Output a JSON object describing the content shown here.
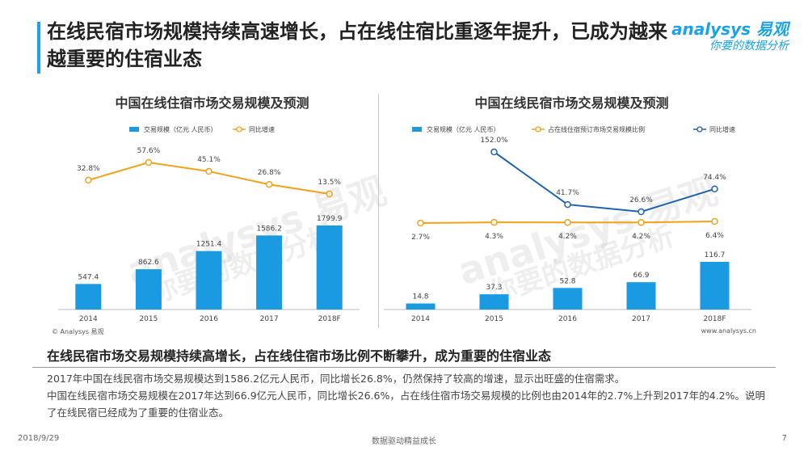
{
  "page": {
    "title": "在线民宿市场规模持续高速增长，占在线住宿比重逐年提升，已成为越来越重要的住宿业态",
    "logo_brand": "analysys 易观",
    "logo_slogan": "你要的数据分析",
    "watermark_brand": "analysys 易观",
    "watermark_slogan": "你要的数据分析",
    "source_left": "© Analysys 易观",
    "source_right": "www.analysys.cn",
    "subtitle": "在线民宿市场交易规模持续高增长，占在线住宿市场比例不断攀升，成为重要的住宿业态",
    "paragraphs": [
      "2017年中国在线民宿市场交易规模达到1586.2亿元人民币，同比增长26.8%，仍然保持了较高的增速，显示出旺盛的住宿需求。",
      "中国在线民宿市场交易规模在2017年达到66.9亿元人民币，同比增长26.6%，占在线住宿市场交易规模的比例也由2014年的2.7%上升到2017年的4.2%。说明了在线民宿已经成为了重要的住宿业态。"
    ],
    "footer_date": "2018/9/29",
    "footer_center": "数据驱动精益成长",
    "footer_page": "7"
  },
  "colors": {
    "bar": "#1a9ae0",
    "orange_line": "#f0a21b",
    "blue_line": "#1d63b0",
    "accent": "#1aa3e8"
  },
  "chart_data": [
    {
      "type": "bar",
      "title": "中国在线住宿市场交易规模及预测",
      "categories": [
        "2014",
        "2015",
        "2016",
        "2017",
        "2018F"
      ],
      "series": [
        {
          "name": "交易规模（亿元 人民币）",
          "kind": "bar",
          "values": [
            547.4,
            862.6,
            1251.4,
            1586.2,
            1799.9
          ],
          "labels": [
            "547.4",
            "862.6",
            "1251.4",
            "1586.2",
            "1799.9"
          ]
        },
        {
          "name": "同比增速",
          "kind": "line",
          "values": [
            32.8,
            57.6,
            45.1,
            26.8,
            13.5
          ],
          "labels": [
            "32.8%",
            "57.6%",
            "45.1%",
            "26.8%",
            "13.5%"
          ]
        }
      ],
      "legend": "top",
      "grid": false
    },
    {
      "type": "bar",
      "title": "中国在线民宿市场交易规模及预测",
      "categories": [
        "2014",
        "2015",
        "2016",
        "2017",
        "2018F"
      ],
      "series": [
        {
          "name": "交易规模（亿元 人民币）",
          "kind": "bar",
          "values": [
            14.8,
            37.3,
            52.8,
            66.9,
            116.7
          ],
          "labels": [
            "14.8",
            "37.3",
            "52.8",
            "66.9",
            "116.7"
          ]
        },
        {
          "name": "占在线住宿预订市场交易规模比例",
          "kind": "line",
          "values": [
            2.7,
            4.3,
            4.2,
            4.2,
            6.4
          ],
          "labels": [
            "2.7%",
            "4.3%",
            "4.2%",
            "4.2%",
            "6.4%"
          ]
        },
        {
          "name": "同比增速",
          "kind": "line",
          "values": [
            null,
            152.0,
            41.7,
            26.6,
            74.4
          ],
          "labels": [
            "",
            "152.0%",
            "41.7%",
            "26.6%",
            "74.4%"
          ]
        }
      ],
      "legend": "top",
      "grid": false
    }
  ]
}
